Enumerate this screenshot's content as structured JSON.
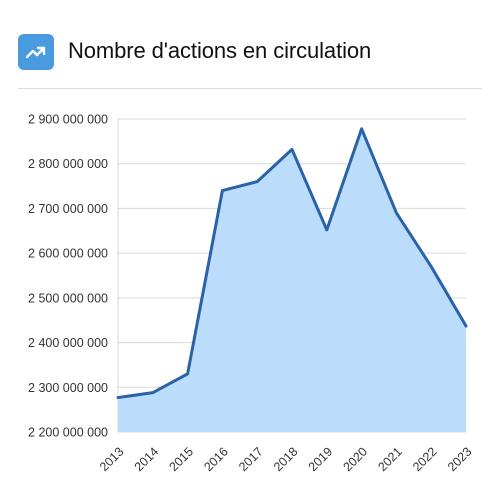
{
  "header": {
    "title": "Nombre d'actions en circulation",
    "icon": "trending-up-icon",
    "icon_color": "#4a9ae0"
  },
  "chart_data": {
    "type": "area",
    "title": "Nombre d'actions en circulation",
    "x": [
      "2013",
      "2014",
      "2015",
      "2016",
      "2017",
      "2018",
      "2019",
      "2020",
      "2021",
      "2022",
      "2023"
    ],
    "series": [
      {
        "values": [
          2277000000,
          2288000000,
          2330000000,
          2740000000,
          2760000000,
          2832000000,
          2652000000,
          2878000000,
          2690000000,
          2570000000,
          2437000000
        ],
        "line_color": "#2a62a8",
        "fill_color": "#bcdcfb"
      }
    ],
    "y_ticks": [
      "2 900 000 000",
      "2 800 000 000",
      "2 700 000 000",
      "2 600 000 000",
      "2 500 000 000",
      "2 400 000 000",
      "2 300 000 000",
      "2 200 000 000"
    ],
    "y_tick_values": [
      2900000000,
      2800000000,
      2700000000,
      2600000000,
      2500000000,
      2400000000,
      2300000000,
      2200000000
    ],
    "ylim": [
      2200000000,
      2900000000
    ],
    "grid": true
  }
}
